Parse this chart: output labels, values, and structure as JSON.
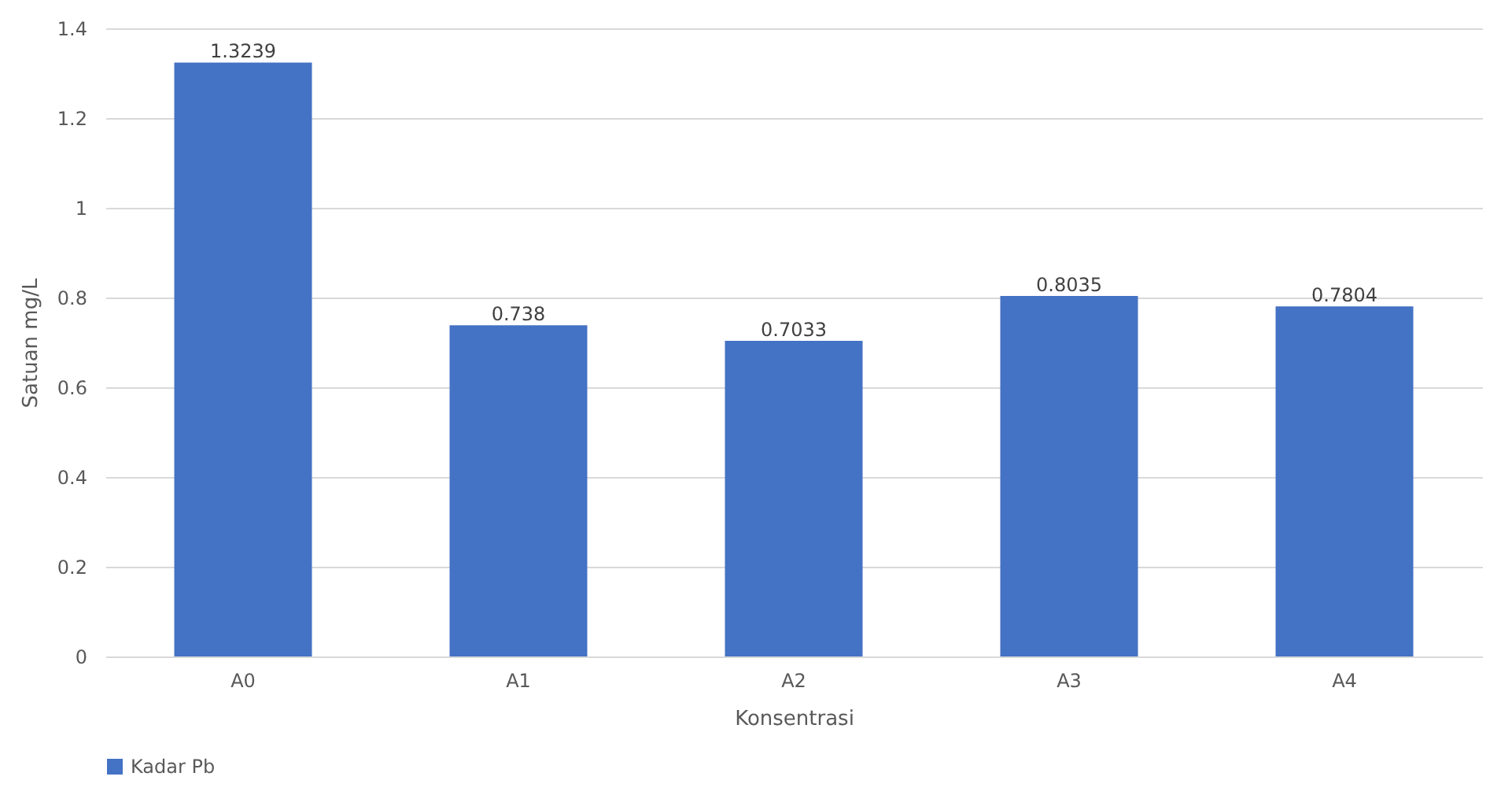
{
  "chart_data": {
    "type": "bar",
    "xlabel": "Konsentrasi",
    "ylabel": "Satuan mg/L",
    "categories": [
      "A0",
      "A1",
      "A2",
      "A3",
      "A4"
    ],
    "series": [
      {
        "name": "Kadar Pb",
        "color": "#4472c4",
        "values": [
          1.3239,
          0.738,
          0.7033,
          0.8035,
          0.7804
        ]
      }
    ],
    "ylim": [
      0,
      1.4
    ],
    "yticks": [
      0,
      0.2,
      0.4,
      0.6,
      0.8,
      1,
      1.2,
      1.4
    ],
    "grid": "y",
    "legend": "bottom",
    "data_labels": true
  }
}
